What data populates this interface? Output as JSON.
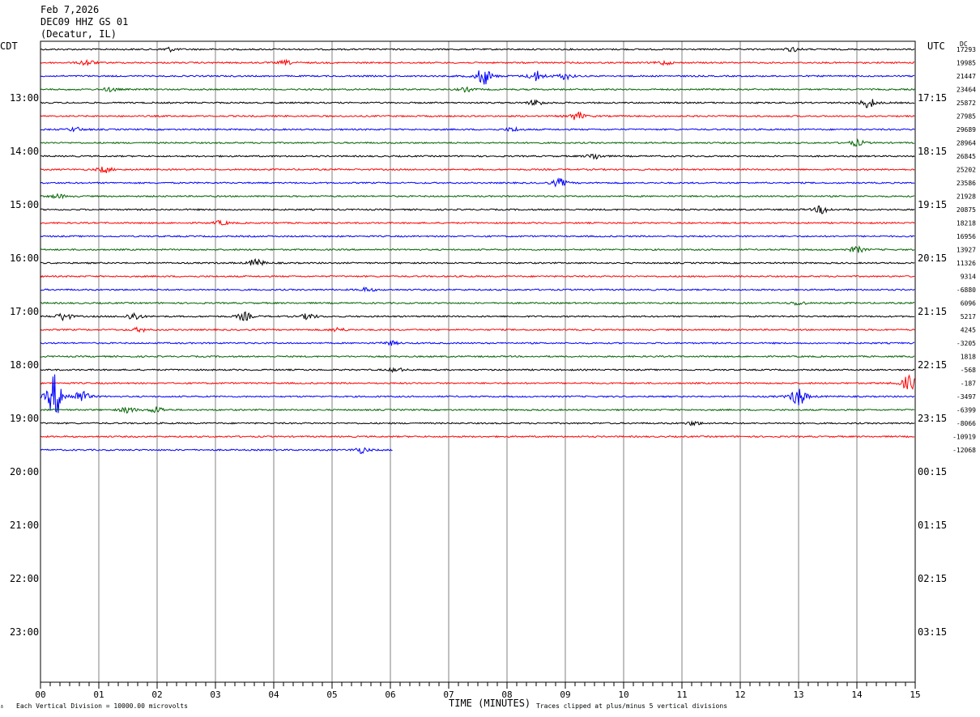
{
  "header": {
    "date": "Feb 7,2026",
    "station": "DEC09 HHZ GS 01",
    "location": "(Decatur, IL)"
  },
  "left_zone": "CDT",
  "right_zone": "UTC",
  "dc_label": "DC",
  "footer": {
    "scale_note": "Each Vertical Division = 10000.00 microvolts",
    "xlabel": "TIME (MINUTES)",
    "clip_note": "Traces clipped at plus/minus 5 vertical divisions"
  },
  "colors": {
    "trace_cycle": [
      "#000000",
      "#ff0000",
      "#0000ff",
      "#006400"
    ],
    "grid": "#808080",
    "frame": "#000000"
  },
  "chart_data": {
    "type": "line",
    "subtype": "helicorder",
    "x_range": [
      0,
      15
    ],
    "x_ticks": [
      "00",
      "01",
      "02",
      "03",
      "04",
      "05",
      "06",
      "07",
      "08",
      "09",
      "10",
      "11",
      "12",
      "13",
      "14",
      "15"
    ],
    "line_minutes": 15,
    "rows_total": 48,
    "hour_labels_left": [
      "13:00",
      "14:00",
      "15:00",
      "16:00",
      "17:00",
      "18:00",
      "19:00",
      "20:00",
      "21:00",
      "22:00",
      "23:00"
    ],
    "hour_labels_right": [
      "17:15",
      "18:15",
      "19:15",
      "20:15",
      "21:15",
      "22:15",
      "23:15",
      "00:15",
      "01:15",
      "02:15",
      "03:15"
    ],
    "dc_offsets": [
      "17293",
      "19985",
      "21447",
      "23464",
      "25872",
      "27985",
      "29689",
      "28964",
      "26845",
      "25202",
      "23586",
      "21928",
      "20875",
      "18218",
      "16956",
      "13927",
      "11326",
      "9314",
      "-6880",
      "6096",
      "5217",
      "4245",
      "-3205",
      "1818",
      "-568",
      "-187",
      "-3497",
      "-6399",
      "-8066",
      "-10919",
      "-12068"
    ],
    "traces": [
      {
        "row": 0,
        "end_min": 15,
        "events": [
          {
            "t": 2.2,
            "amp": 2
          },
          {
            "t": 12.9,
            "amp": 2
          }
        ]
      },
      {
        "row": 1,
        "end_min": 15,
        "events": [
          {
            "t": 0.8,
            "amp": 3
          },
          {
            "t": 4.2,
            "amp": 2
          },
          {
            "t": 10.7,
            "amp": 2
          }
        ]
      },
      {
        "row": 2,
        "end_min": 15,
        "events": [
          {
            "t": 7.6,
            "amp": 9
          },
          {
            "t": 8.5,
            "amp": 5
          },
          {
            "t": 9.0,
            "amp": 3
          }
        ]
      },
      {
        "row": 3,
        "end_min": 15,
        "events": [
          {
            "t": 1.2,
            "amp": 2
          },
          {
            "t": 7.3,
            "amp": 2
          }
        ]
      },
      {
        "row": 4,
        "end_min": 15,
        "events": [
          {
            "t": 8.5,
            "amp": 3
          },
          {
            "t": 14.2,
            "amp": 5
          }
        ]
      },
      {
        "row": 5,
        "end_min": 15,
        "events": [
          {
            "t": 9.2,
            "amp": 4
          }
        ]
      },
      {
        "row": 6,
        "end_min": 15,
        "events": [
          {
            "t": 0.6,
            "amp": 2
          },
          {
            "t": 8.1,
            "amp": 2
          }
        ]
      },
      {
        "row": 7,
        "end_min": 15,
        "events": [
          {
            "t": 14.0,
            "amp": 3
          }
        ]
      },
      {
        "row": 8,
        "end_min": 15,
        "events": [
          {
            "t": 9.5,
            "amp": 3
          }
        ]
      },
      {
        "row": 9,
        "end_min": 15,
        "events": [
          {
            "t": 1.1,
            "amp": 3
          }
        ]
      },
      {
        "row": 10,
        "end_min": 15,
        "events": [
          {
            "t": 8.9,
            "amp": 4
          }
        ]
      },
      {
        "row": 11,
        "end_min": 15,
        "events": [
          {
            "t": 0.3,
            "amp": 2
          }
        ]
      },
      {
        "row": 12,
        "end_min": 15,
        "events": [
          {
            "t": 13.4,
            "amp": 4
          }
        ]
      },
      {
        "row": 13,
        "end_min": 15,
        "events": [
          {
            "t": 3.1,
            "amp": 2
          }
        ]
      },
      {
        "row": 14,
        "end_min": 15,
        "events": []
      },
      {
        "row": 15,
        "end_min": 15,
        "events": [
          {
            "t": 14.0,
            "amp": 3
          }
        ]
      },
      {
        "row": 16,
        "end_min": 15,
        "events": [
          {
            "t": 3.7,
            "amp": 4
          }
        ]
      },
      {
        "row": 17,
        "end_min": 15,
        "events": []
      },
      {
        "row": 18,
        "end_min": 15,
        "events": [
          {
            "t": 5.6,
            "amp": 2
          }
        ]
      },
      {
        "row": 19,
        "end_min": 15,
        "events": [
          {
            "t": 13.0,
            "amp": 2
          }
        ]
      },
      {
        "row": 20,
        "end_min": 15,
        "events": [
          {
            "t": 0.4,
            "amp": 4
          },
          {
            "t": 1.6,
            "amp": 4
          },
          {
            "t": 3.5,
            "amp": 4
          },
          {
            "t": 4.6,
            "amp": 3
          }
        ]
      },
      {
        "row": 21,
        "end_min": 15,
        "events": [
          {
            "t": 1.7,
            "amp": 2
          },
          {
            "t": 5.1,
            "amp": 2
          }
        ]
      },
      {
        "row": 22,
        "end_min": 15,
        "events": [
          {
            "t": 6.0,
            "amp": 2
          }
        ]
      },
      {
        "row": 23,
        "end_min": 15,
        "events": []
      },
      {
        "row": 24,
        "end_min": 15,
        "events": [
          {
            "t": 6.1,
            "amp": 2
          }
        ]
      },
      {
        "row": 25,
        "end_min": 15,
        "events": [
          {
            "t": 14.9,
            "amp": 8
          }
        ]
      },
      {
        "row": 26,
        "end_min": 15,
        "events": [
          {
            "t": 0.25,
            "amp": 22
          },
          {
            "t": 0.7,
            "amp": 6
          },
          {
            "t": 13.0,
            "amp": 10
          }
        ]
      },
      {
        "row": 27,
        "end_min": 15,
        "events": [
          {
            "t": 1.5,
            "amp": 3
          },
          {
            "t": 2.0,
            "amp": 3
          }
        ]
      },
      {
        "row": 28,
        "end_min": 15,
        "events": [
          {
            "t": 11.2,
            "amp": 2
          }
        ]
      },
      {
        "row": 29,
        "end_min": 15,
        "events": []
      },
      {
        "row": 30,
        "end_min": 6.05,
        "events": [
          {
            "t": 5.5,
            "amp": 3
          }
        ]
      }
    ]
  }
}
